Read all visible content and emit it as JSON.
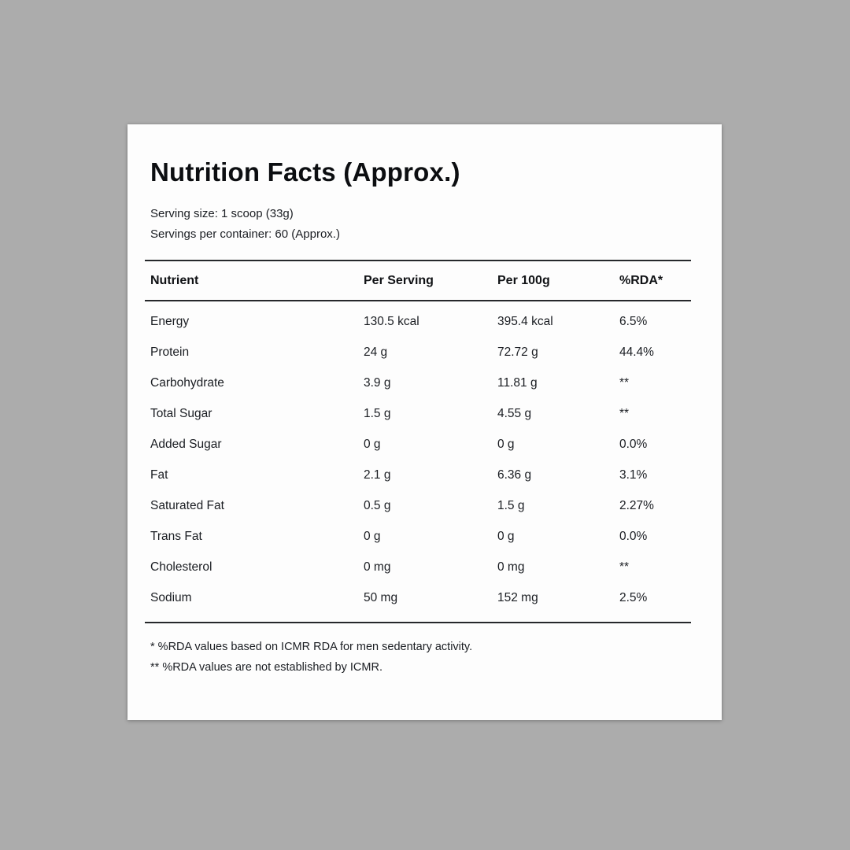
{
  "colors": {
    "page_background": "#acacac",
    "card_background": "#fdfdfd",
    "text": "#16181c",
    "rule_line": "#26282b"
  },
  "card": {
    "title": "Nutrition Facts (Approx.)",
    "serving_size": "Serving size: 1 scoop (33g)",
    "servings_per_container": "Servings per container: 60 (Approx.)"
  },
  "table": {
    "headers": [
      "Nutrient",
      "Per Serving",
      "Per 100g",
      "%RDA*"
    ],
    "rows": [
      [
        "Energy",
        "130.5 kcal",
        "395.4 kcal",
        "6.5%"
      ],
      [
        "Protein",
        "24 g",
        "72.72 g",
        "44.4%"
      ],
      [
        "Carbohydrate",
        "3.9 g",
        "11.81 g",
        "**"
      ],
      [
        "Total Sugar",
        "1.5 g",
        "4.55 g",
        "**"
      ],
      [
        "Added Sugar",
        "0 g",
        "0 g",
        "0.0%"
      ],
      [
        "Fat",
        "2.1 g",
        "6.36 g",
        "3.1%"
      ],
      [
        "Saturated Fat",
        "0.5 g",
        "1.5 g",
        "2.27%"
      ],
      [
        "Trans Fat",
        "0 g",
        "0 g",
        "0.0%"
      ],
      [
        "Cholesterol",
        "0 mg",
        "0 mg",
        "**"
      ],
      [
        "Sodium",
        "50 mg",
        "152 mg",
        "2.5%"
      ]
    ]
  },
  "footnotes": [
    "* %RDA values based on ICMR RDA for men sedentary activity.",
    "** %RDA values are not established by ICMR."
  ]
}
